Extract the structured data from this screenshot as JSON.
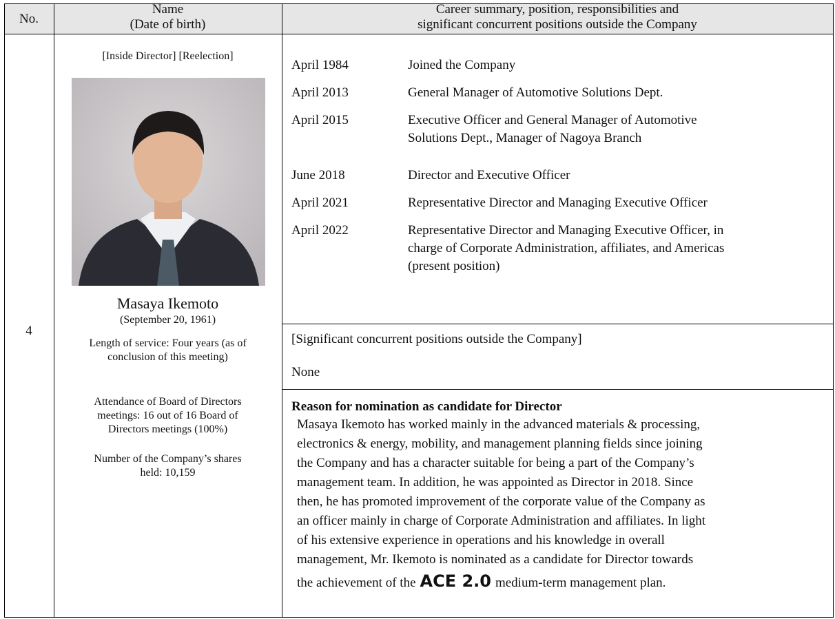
{
  "header": {
    "no": "No.",
    "name_line1": "Name",
    "name_line2": "(Date of birth)",
    "career_line1": "Career summary, position, responsibilities and",
    "career_line2": "significant concurrent positions outside the Company"
  },
  "candidate": {
    "no": "4",
    "tags": "[Inside Director] [Reelection]",
    "name": "Masaya Ikemoto",
    "birth": "(September 20, 1961)",
    "service": [
      "Length of service: Four years (as of",
      "conclusion of this meeting)"
    ],
    "attendance": [
      "Attendance of Board of Directors",
      "meetings: 16 out of 16 Board of",
      "Directors meetings (100%)"
    ],
    "shares": [
      "Number of the Company’s shares",
      "held: 10,159"
    ]
  },
  "career": [
    {
      "date": "April 1984",
      "text": [
        "Joined the Company"
      ]
    },
    {
      "date": "April 2013",
      "text": [
        "General Manager of Automotive Solutions Dept."
      ]
    },
    {
      "date": "April 2015",
      "text": [
        "Executive Officer and General Manager of Automotive",
        "Solutions Dept., Manager of Nagoya Branch"
      ]
    },
    {
      "date": "June 2018",
      "text": [
        "Director and Executive Officer"
      ]
    },
    {
      "date": "April 2021",
      "text": [
        "Representative Director and Managing Executive Officer"
      ]
    },
    {
      "date": "April 2022",
      "text": [
        "Representative Director and Managing Executive Officer, in",
        "charge of Corporate Administration, affiliates, and Americas",
        "(present position)"
      ]
    }
  ],
  "concurrent": {
    "heading": "[Significant concurrent positions outside the Company]",
    "value": "None"
  },
  "reason": {
    "heading": "Reason for nomination as candidate for Director",
    "lines": [
      "Masaya Ikemoto has worked mainly in the advanced materials & processing,",
      "electronics & energy, mobility, and management planning fields since joining",
      "the Company and has a character suitable for being a part of the Company’s",
      "management team. In addition, he was appointed as Director in 2018. Since",
      "then, he has promoted improvement of the corporate value of the Company as",
      "an officer mainly in charge of Corporate Administration and affiliates. In light",
      "of his extensive experience in operations and his knowledge in overall",
      "management, Mr. Ikemoto is nominated as a candidate for Director towards"
    ],
    "last_line": {
      "before": "the achievement of the",
      "emphasis": "ACE 2.0",
      "after": "medium-term management plan."
    }
  }
}
